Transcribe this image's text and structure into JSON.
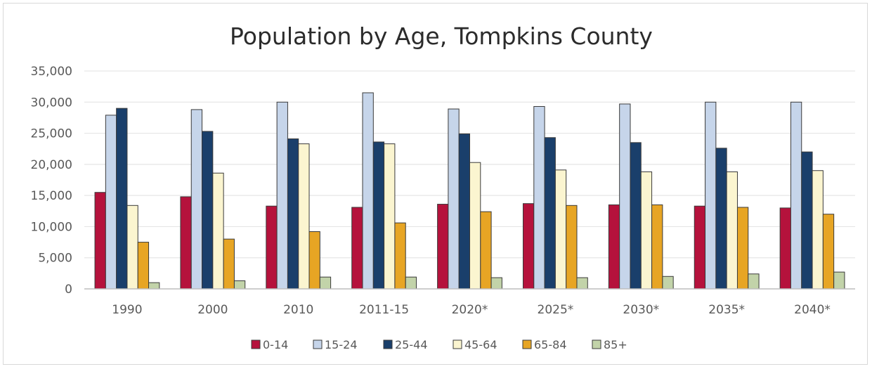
{
  "chart_data": {
    "type": "bar",
    "title": "Population by Age, Tompkins County",
    "xlabel": "",
    "ylabel": "",
    "ylim": [
      0,
      35000
    ],
    "yticks": [
      0,
      5000,
      10000,
      15000,
      20000,
      25000,
      30000,
      35000
    ],
    "ytick_labels": [
      "0",
      "5,000",
      "10,000",
      "15,000",
      "20,000",
      "25,000",
      "30,000",
      "35,000"
    ],
    "grid": true,
    "legend_position": "bottom",
    "categories": [
      "1990",
      "2000",
      "2010",
      "2011-15",
      "2020*",
      "2025*",
      "2030*",
      "2035*",
      "2040*"
    ],
    "series": [
      {
        "name": "0-14",
        "color": "#b5123c",
        "values": [
          15500,
          14800,
          13300,
          13100,
          13600,
          13700,
          13500,
          13300,
          13000
        ]
      },
      {
        "name": "15-24",
        "color": "#c6d5ea",
        "values": [
          27900,
          28800,
          30000,
          31500,
          28900,
          29300,
          29700,
          30000,
          30000
        ]
      },
      {
        "name": "25-44",
        "color": "#1a3f6b",
        "values": [
          29000,
          25300,
          24100,
          23600,
          24900,
          24300,
          23500,
          22600,
          22000
        ]
      },
      {
        "name": "45-64",
        "color": "#fbf5d0",
        "values": [
          13400,
          18600,
          23300,
          23300,
          20300,
          19100,
          18800,
          18800,
          19000
        ]
      },
      {
        "name": "65-84",
        "color": "#e7a524",
        "values": [
          7500,
          8000,
          9200,
          10600,
          12400,
          13400,
          13500,
          13100,
          12000
        ]
      },
      {
        "name": "85+",
        "color": "#c2d3a9",
        "values": [
          1000,
          1300,
          1900,
          1900,
          1800,
          1800,
          2000,
          2400,
          2700
        ]
      }
    ]
  }
}
